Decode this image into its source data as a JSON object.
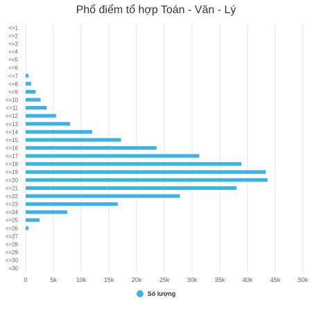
{
  "chart_data": {
    "type": "bar",
    "orientation": "horizontal",
    "title": "Phổ điểm tổ hợp Toán - Văn - Lý",
    "categories": [
      "<=1",
      "<=2",
      "<=3",
      "<=4",
      "<=5",
      "<=6",
      "<=7",
      "<=8",
      "<=9",
      "<=10",
      "<=11",
      "<=12",
      "<=13",
      "<=14",
      "<=15",
      "<=16",
      "<=17",
      "<=18",
      "<=19",
      "<=20",
      "<=21",
      "<=22",
      "<=23",
      "<=24",
      "<=25",
      "<=26",
      "<=27",
      "<=28",
      "<=29",
      "<=30",
      "=30"
    ],
    "series": [
      {
        "name": "Số lượng",
        "values": [
          0,
          0,
          0,
          0,
          0,
          0,
          500,
          1000,
          1800,
          2700,
          3800,
          5500,
          8000,
          12000,
          17200,
          23600,
          31300,
          38900,
          43300,
          43600,
          38000,
          27800,
          16600,
          7500,
          2500,
          500,
          0,
          0,
          0,
          0,
          0
        ]
      }
    ],
    "xlim": [
      0,
      50000
    ],
    "xticks": [
      "0",
      "5k",
      "10k",
      "15k",
      "20k",
      "25k",
      "30k",
      "35k",
      "40k",
      "45k",
      "50k"
    ],
    "grid": true,
    "legend_position": "bottom-center",
    "color": "#3bb3e9"
  }
}
